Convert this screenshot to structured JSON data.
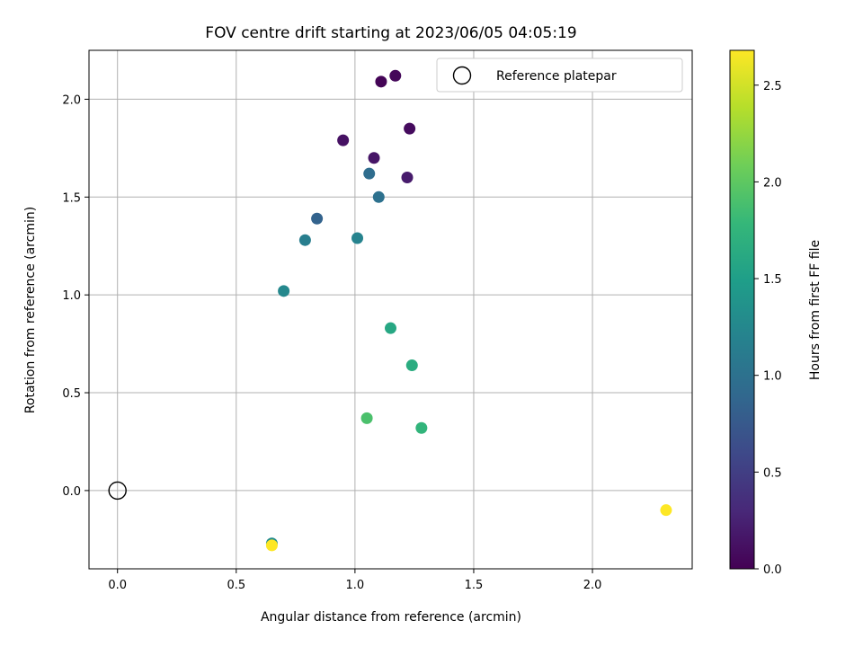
{
  "chart_data": {
    "type": "scatter",
    "title": "FOV centre drift starting at 2023/06/05 04:05:19",
    "xlabel": "Angular distance from reference (arcmin)",
    "ylabel": "Rotation from reference (arcmin)",
    "xlim": [
      -0.12,
      2.42
    ],
    "ylim": [
      -0.4,
      2.25
    ],
    "xticks": [
      0.0,
      0.5,
      1.0,
      1.5,
      2.0
    ],
    "xtick_labels": [
      "0.0",
      "0.5",
      "1.0",
      "1.5",
      "2.0"
    ],
    "yticks": [
      0.0,
      0.5,
      1.0,
      1.5,
      2.0
    ],
    "ytick_labels": [
      "0.0",
      "0.5",
      "1.0",
      "1.5",
      "2.0"
    ],
    "grid": true,
    "legend": {
      "position": "top-right",
      "label": "Reference platepar"
    },
    "reference_point": {
      "x": 0.0,
      "y": 0.0
    },
    "colorbar": {
      "label": "Hours from first FF file",
      "range": [
        0.0,
        2.68
      ],
      "ticks": [
        0.0,
        0.5,
        1.0,
        1.5,
        2.0,
        2.5
      ],
      "tick_labels": [
        "0.0",
        "0.5",
        "1.0",
        "1.5",
        "2.0",
        "2.5"
      ],
      "colormap": [
        "#440154",
        "#482878",
        "#3e4989",
        "#31688e",
        "#26828e",
        "#1f9e89",
        "#35b779",
        "#6ece58",
        "#b5de2b",
        "#fde725"
      ]
    },
    "points": [
      {
        "x": 1.11,
        "y": 2.09,
        "c": 0.02
      },
      {
        "x": 1.17,
        "y": 2.12,
        "c": 0.05
      },
      {
        "x": 1.23,
        "y": 1.85,
        "c": 0.08
      },
      {
        "x": 0.95,
        "y": 1.79,
        "c": 0.12
      },
      {
        "x": 1.08,
        "y": 1.7,
        "c": 0.15
      },
      {
        "x": 1.22,
        "y": 1.6,
        "c": 0.2
      },
      {
        "x": 0.84,
        "y": 1.39,
        "c": 0.85
      },
      {
        "x": 1.06,
        "y": 1.62,
        "c": 0.95
      },
      {
        "x": 1.1,
        "y": 1.5,
        "c": 1.0
      },
      {
        "x": 0.79,
        "y": 1.28,
        "c": 1.15
      },
      {
        "x": 1.01,
        "y": 1.29,
        "c": 1.2
      },
      {
        "x": 0.7,
        "y": 1.02,
        "c": 1.25
      },
      {
        "x": 1.15,
        "y": 0.83,
        "c": 1.6
      },
      {
        "x": 1.24,
        "y": 0.64,
        "c": 1.65
      },
      {
        "x": 1.28,
        "y": 0.32,
        "c": 1.75
      },
      {
        "x": 1.05,
        "y": 0.37,
        "c": 1.9
      },
      {
        "x": 0.65,
        "y": -0.27,
        "c": 1.3
      },
      {
        "x": 0.65,
        "y": -0.28,
        "c": 2.68
      },
      {
        "x": 2.31,
        "y": -0.1,
        "c": 2.68
      }
    ]
  }
}
